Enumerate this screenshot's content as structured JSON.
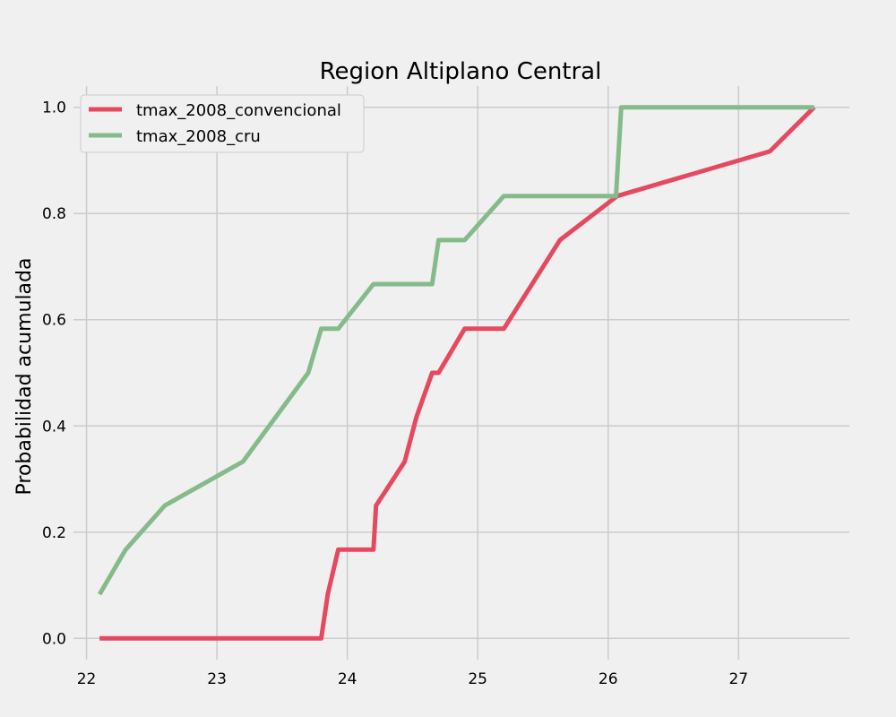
{
  "chart_data": {
    "type": "line",
    "title": "Region Altiplano Central",
    "xlabel": "",
    "ylabel": "Probabilidad acumulada",
    "xlim": [
      21.9,
      27.85
    ],
    "ylim": [
      -0.04,
      1.04
    ],
    "xticks": [
      22,
      23,
      24,
      25,
      26,
      27
    ],
    "yticks": [
      0.0,
      0.2,
      0.4,
      0.6,
      0.8,
      1.0
    ],
    "xtick_labels": [
      "22",
      "23",
      "24",
      "25",
      "26",
      "27"
    ],
    "ytick_labels": [
      "0.0",
      "0.2",
      "0.4",
      "0.6",
      "0.8",
      "1.0"
    ],
    "grid": true,
    "legend_position": "top-left",
    "series": [
      {
        "name": "tmax_2008_convencional",
        "color": "#e5495f",
        "x": [
          22.1,
          23.8,
          23.85,
          23.93,
          24.2,
          24.22,
          24.44,
          24.53,
          24.65,
          24.7,
          24.9,
          25.2,
          25.63,
          26.07,
          27.24,
          27.58
        ],
        "y": [
          0.0,
          0.0,
          0.083,
          0.167,
          0.167,
          0.25,
          0.333,
          0.417,
          0.5,
          0.5,
          0.583,
          0.583,
          0.75,
          0.833,
          0.917,
          1.0
        ]
      },
      {
        "name": "tmax_2008_cru",
        "color": "#85bb8a",
        "x": [
          22.1,
          22.3,
          22.6,
          23.2,
          23.7,
          23.8,
          23.93,
          24.2,
          24.65,
          24.7,
          24.9,
          25.2,
          26.06,
          26.1,
          27.58
        ],
        "y": [
          0.083,
          0.167,
          0.25,
          0.333,
          0.5,
          0.583,
          0.583,
          0.667,
          0.667,
          0.75,
          0.75,
          0.833,
          0.833,
          1.0,
          1.0
        ]
      }
    ]
  }
}
